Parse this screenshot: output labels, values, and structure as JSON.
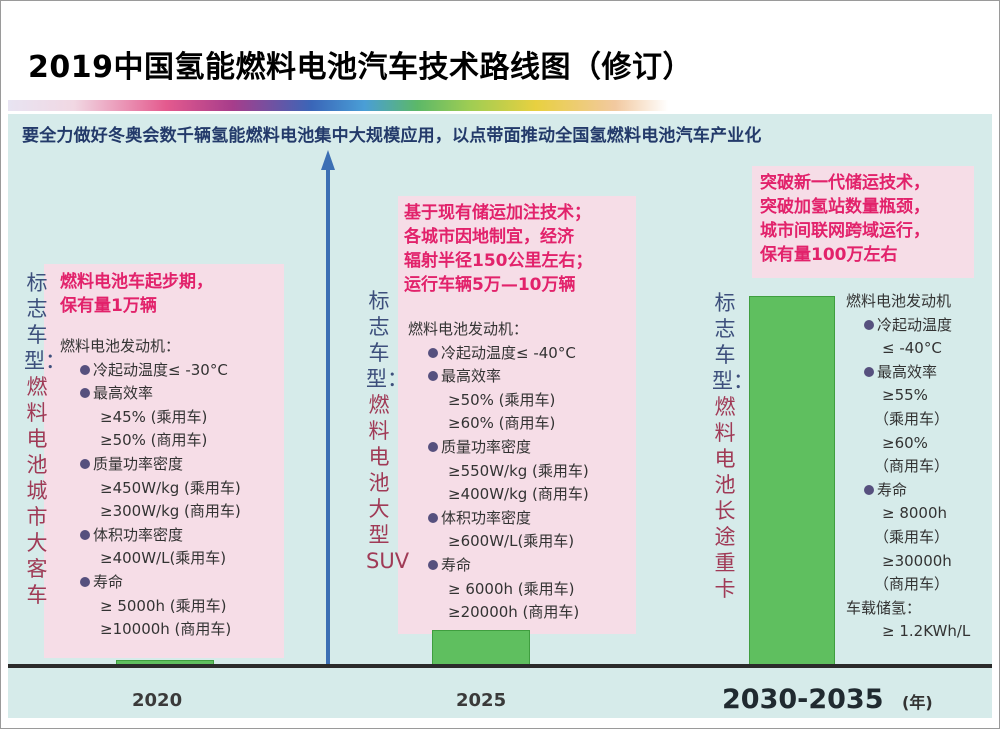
{
  "title": "2019中国氢能燃料电池汽车技术路线图（修订）",
  "subtitle": "要全力做好冬奥会数千辆氢能燃料电池集中大规模应用，以点带面推动全国氢燃料电池汽车产业化",
  "colors": {
    "bar": "#5fbf5f",
    "axis": "#3c6fb4",
    "highlight": "#e2226b",
    "panel": "#f6dde7",
    "background": "#d6ebea"
  },
  "years": [
    "2020",
    "2025",
    "2030-2035"
  ],
  "year_unit": "(年)",
  "stages": [
    {
      "year": "2020",
      "relative_height": 0.03,
      "vehicle_head": "标志车型：",
      "vehicle_body": "燃料电池城市大客车",
      "stage_text": [
        "燃料电池车起步期，",
        "保有量1万辆"
      ],
      "specs_title": "燃料电池发动机：",
      "specs": [
        {
          "text": "冷起动温度≤ -30°C",
          "bullet": true,
          "indent": 1
        },
        {
          "text": "最高效率",
          "bullet": true,
          "indent": 1
        },
        {
          "text": "≥45% (乘用车)",
          "bullet": false,
          "indent": 2
        },
        {
          "text": "≥50% (商用车)",
          "bullet": false,
          "indent": 2
        },
        {
          "text": "质量功率密度",
          "bullet": true,
          "indent": 1
        },
        {
          "text": "≥450W/kg (乘用车)",
          "bullet": false,
          "indent": 2
        },
        {
          "text": "≥300W/kg (商用车)",
          "bullet": false,
          "indent": 2
        },
        {
          "text": "体积功率密度",
          "bullet": true,
          "indent": 1
        },
        {
          "text": "≥400W/L(乘用车)",
          "bullet": false,
          "indent": 2
        },
        {
          "text": "寿命",
          "bullet": true,
          "indent": 1
        },
        {
          "text": "≥ 5000h (乘用车)",
          "bullet": false,
          "indent": 2
        },
        {
          "text": "≥10000h (商用车)",
          "bullet": false,
          "indent": 2
        }
      ]
    },
    {
      "year": "2025",
      "relative_height": 0.12,
      "vehicle_head": "标志车型：",
      "vehicle_body": "燃料电池大型SUV",
      "stage_text": [
        "基于现有储运加注技术；",
        "各城市因地制宜，经济",
        "辐射半径150公里左右；",
        "运行车辆5万—10万辆"
      ],
      "specs_title": "燃料电池发动机：",
      "specs": [
        {
          "text": "冷起动温度≤ -40°C",
          "bullet": true,
          "indent": 1
        },
        {
          "text": "最高效率",
          "bullet": true,
          "indent": 1
        },
        {
          "text": "≥50% (乘用车)",
          "bullet": false,
          "indent": 2
        },
        {
          "text": "≥60% (商用车)",
          "bullet": false,
          "indent": 2
        },
        {
          "text": "质量功率密度",
          "bullet": true,
          "indent": 1
        },
        {
          "text": "≥550W/kg (乘用车)",
          "bullet": false,
          "indent": 2
        },
        {
          "text": "≥400W/kg (商用车)",
          "bullet": false,
          "indent": 2
        },
        {
          "text": "体积功率密度",
          "bullet": true,
          "indent": 1
        },
        {
          "text": "≥600W/L(乘用车)",
          "bullet": false,
          "indent": 2
        },
        {
          "text": "寿命",
          "bullet": true,
          "indent": 1
        },
        {
          "text": "≥ 6000h (乘用车)",
          "bullet": false,
          "indent": 2
        },
        {
          "text": "≥20000h (商用车)",
          "bullet": false,
          "indent": 2
        }
      ]
    },
    {
      "year": "2030-2035",
      "relative_height": 1.0,
      "vehicle_head": "标志车型：",
      "vehicle_body": "燃料电池长途重卡",
      "stage_text": [
        "突破新一代储运技术，",
        "突破加氢站数量瓶颈，",
        "城市间联网跨域运行，",
        "保有量100万左右"
      ],
      "specs_title": "燃料电池发动机",
      "specs": [
        {
          "text": "冷起动温度",
          "bullet": true,
          "indent": 3
        },
        {
          "text": "≤ -40°C",
          "bullet": false,
          "indent": 4
        },
        {
          "text": "最高效率",
          "bullet": true,
          "indent": 3
        },
        {
          "text": "≥55%",
          "bullet": false,
          "indent": 4
        },
        {
          "text": "（乘用车）",
          "bullet": false,
          "indent": 5
        },
        {
          "text": "≥60%",
          "bullet": false,
          "indent": 4
        },
        {
          "text": "（商用车）",
          "bullet": false,
          "indent": 5
        },
        {
          "text": "寿命",
          "bullet": true,
          "indent": 3
        },
        {
          "text": "≥ 8000h",
          "bullet": false,
          "indent": 4
        },
        {
          "text": "（乘用车）",
          "bullet": false,
          "indent": 5
        },
        {
          "text": "≥30000h",
          "bullet": false,
          "indent": 4
        },
        {
          "text": "（商用车）",
          "bullet": false,
          "indent": 5
        },
        {
          "text": "车载储氢：",
          "bullet": false,
          "indent": 0
        },
        {
          "text": "≥ 1.2KWh/L",
          "bullet": false,
          "indent": 4
        }
      ]
    }
  ]
}
